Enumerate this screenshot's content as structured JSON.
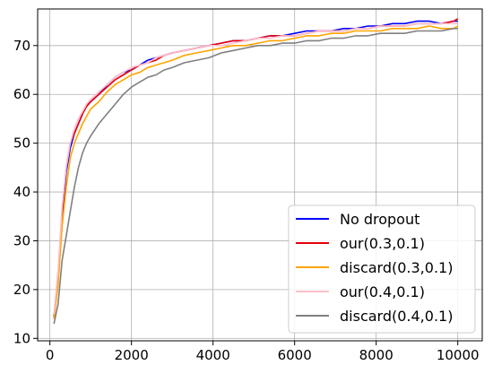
{
  "chart_data": {
    "type": "line",
    "title": "",
    "xlabel": "",
    "ylabel": "",
    "xlim": [
      -300,
      10600
    ],
    "ylim": [
      9.5,
      77.5
    ],
    "grid": true,
    "legend_placement": "lower-right",
    "x_ticks": [
      0,
      2000,
      4000,
      6000,
      8000,
      10000
    ],
    "x_tick_labels": [
      "0",
      "2000",
      "4000",
      "6000",
      "8000",
      "10000"
    ],
    "y_ticks": [
      10,
      20,
      30,
      40,
      50,
      60,
      70
    ],
    "y_tick_labels": [
      "10",
      "20",
      "30",
      "40",
      "50",
      "60",
      "70"
    ],
    "x": [
      100,
      200,
      300,
      400,
      500,
      600,
      700,
      800,
      900,
      1000,
      1200,
      1400,
      1600,
      1800,
      2000,
      2200,
      2400,
      2600,
      2800,
      3000,
      3300,
      3600,
      3900,
      4200,
      4500,
      4800,
      5100,
      5400,
      5700,
      6000,
      6300,
      6600,
      6900,
      7200,
      7500,
      7800,
      8100,
      8400,
      8700,
      9000,
      9300,
      9600,
      9900,
      10000
    ],
    "series": [
      {
        "name": "No dropout",
        "color": "#0000ff",
        "values": [
          14,
          22,
          35,
          44,
          49,
          52,
          54,
          56,
          58,
          58.5,
          60,
          62,
          63.5,
          64.5,
          65,
          66,
          67,
          67.5,
          68,
          68.5,
          69,
          69.5,
          70,
          70.5,
          71,
          71,
          71.5,
          72,
          72,
          72.5,
          73,
          73,
          73,
          73.5,
          73.5,
          74,
          74,
          74.5,
          74.5,
          75,
          75,
          74.5,
          75,
          75
        ]
      },
      {
        "name": "our(0.3,0.1)",
        "color": "#e8000b",
        "values": [
          14.5,
          23,
          36,
          45,
          50,
          52,
          54,
          56,
          57.5,
          58.5,
          60,
          61.5,
          63,
          64,
          65,
          66,
          66.5,
          67,
          68,
          68.5,
          69,
          69.5,
          70,
          70.5,
          71,
          71,
          71.5,
          72,
          72,
          72,
          72.5,
          73,
          73,
          73,
          73.5,
          73.5,
          74,
          74,
          74,
          74.5,
          74.5,
          74.5,
          75,
          75.5
        ]
      },
      {
        "name": "discard(0.3,0.1)",
        "color": "#ffa500",
        "values": [
          14,
          21,
          33,
          41,
          47,
          50,
          52,
          54,
          55.5,
          57,
          58.5,
          60.5,
          62,
          63,
          64,
          64.5,
          65.5,
          66,
          66.5,
          67,
          68,
          68.5,
          69,
          69.5,
          70,
          70,
          70.5,
          71,
          71,
          71.5,
          72,
          72,
          72.5,
          72.5,
          73,
          73,
          73,
          73.5,
          73.5,
          73.5,
          74,
          73.5,
          73.5,
          74
        ]
      },
      {
        "name": "our(0.4,0.1)",
        "color": "#ffc0cb",
        "values": [
          15,
          24,
          37,
          45,
          50,
          53,
          55,
          56.5,
          58,
          59,
          60.5,
          62,
          63.5,
          64.5,
          65.5,
          66,
          66.5,
          67.5,
          68,
          68.5,
          69,
          69.5,
          70,
          70,
          70.5,
          71,
          71.5,
          71.5,
          72,
          72,
          72.5,
          73,
          73,
          73,
          73.5,
          73.5,
          74,
          74,
          74,
          74.5,
          74.5,
          74.5,
          74.5,
          74.5
        ]
      },
      {
        "name": "discard(0.4,0.1)",
        "color": "#808080",
        "values": [
          13,
          17,
          26,
          31,
          36,
          41,
          45,
          48,
          50,
          51.5,
          54,
          56,
          58,
          60,
          61.5,
          62.5,
          63.5,
          64,
          65,
          65.5,
          66.5,
          67,
          67.5,
          68.5,
          69,
          69.5,
          70,
          70,
          70.5,
          70.5,
          71,
          71,
          71.5,
          71.5,
          72,
          72,
          72.5,
          72.5,
          72.5,
          73,
          73,
          73,
          73.5,
          73.5
        ]
      }
    ]
  }
}
